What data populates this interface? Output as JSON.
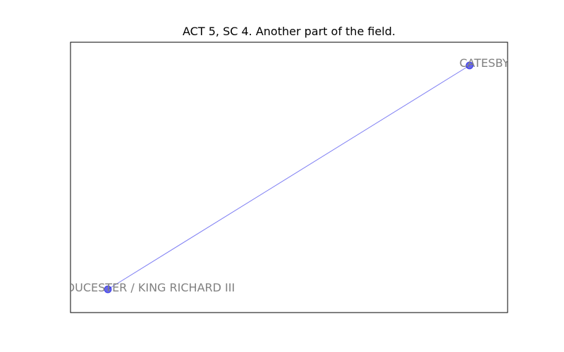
{
  "title": "ACT 5, SC 4. Another part of the field.",
  "colors": {
    "node": "#0000dd",
    "edge": "#4444ee",
    "label": "#808080",
    "frame": "#000000"
  },
  "nodes": [
    {
      "id": "catesby",
      "label": "CATESBY"
    },
    {
      "id": "gloucester",
      "label": "GLOUCESTER / KING RICHARD III"
    }
  ],
  "edges": [
    {
      "source": "gloucester",
      "target": "catesby"
    }
  ]
}
